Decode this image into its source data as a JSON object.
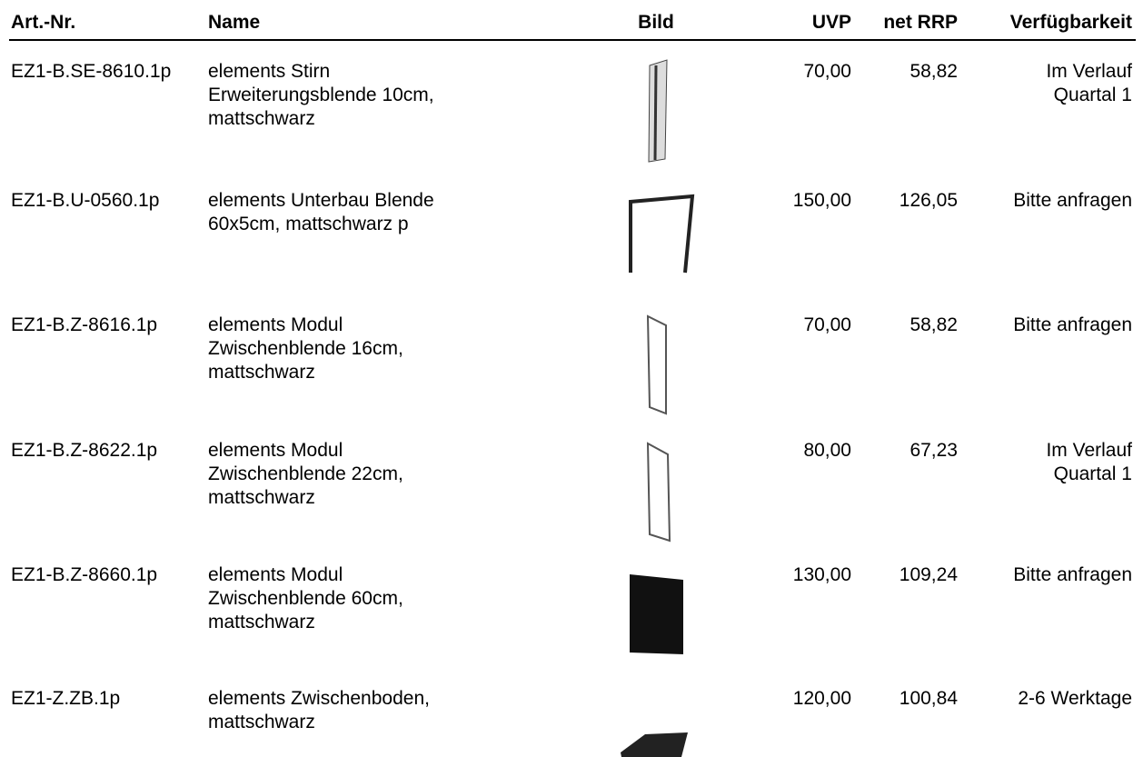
{
  "table": {
    "header": [
      "Art.-Nr.",
      "Name",
      "Bild",
      "UVP",
      "net RRP",
      "Verfügbarkeit"
    ],
    "rows": [
      [
        "EZ1-B.SE-8610.1p",
        [
          "elements Stirn",
          "Erweiterungsblende 10cm,",
          "mattschwarz"
        ],
        "70,00",
        "58,82",
        [
          "Im Verlauf",
          "Quartal 1"
        ]
      ],
      [
        "EZ1-B.U-0560.1p",
        [
          "elements Unterbau Blende",
          "60x5cm, mattschwarz p"
        ],
        "150,00",
        "126,05",
        [
          "Bitte anfragen"
        ]
      ],
      [
        "EZ1-B.Z-8616.1p",
        [
          "elements Modul",
          "Zwischenblende 16cm,",
          "mattschwarz"
        ],
        "70,00",
        "58,82",
        [
          "Bitte anfragen"
        ]
      ],
      [
        "EZ1-B.Z-8622.1p",
        [
          "elements Modul",
          "Zwischenblende 22cm,",
          "mattschwarz"
        ],
        "80,00",
        "67,23",
        [
          "Im Verlauf",
          "Quartal 1"
        ]
      ],
      [
        "EZ1-B.Z-8660.1p",
        [
          "elements Modul",
          "Zwischenblende 60cm,",
          "mattschwarz"
        ],
        "130,00",
        "109,24",
        [
          "Bitte anfragen"
        ]
      ],
      [
        "EZ1-Z.ZB.1p",
        [
          "elements Zwischenboden,",
          "mattschwarz"
        ],
        "120,00",
        "100,84",
        [
          "2-6 Werktage"
        ]
      ]
    ]
  }
}
